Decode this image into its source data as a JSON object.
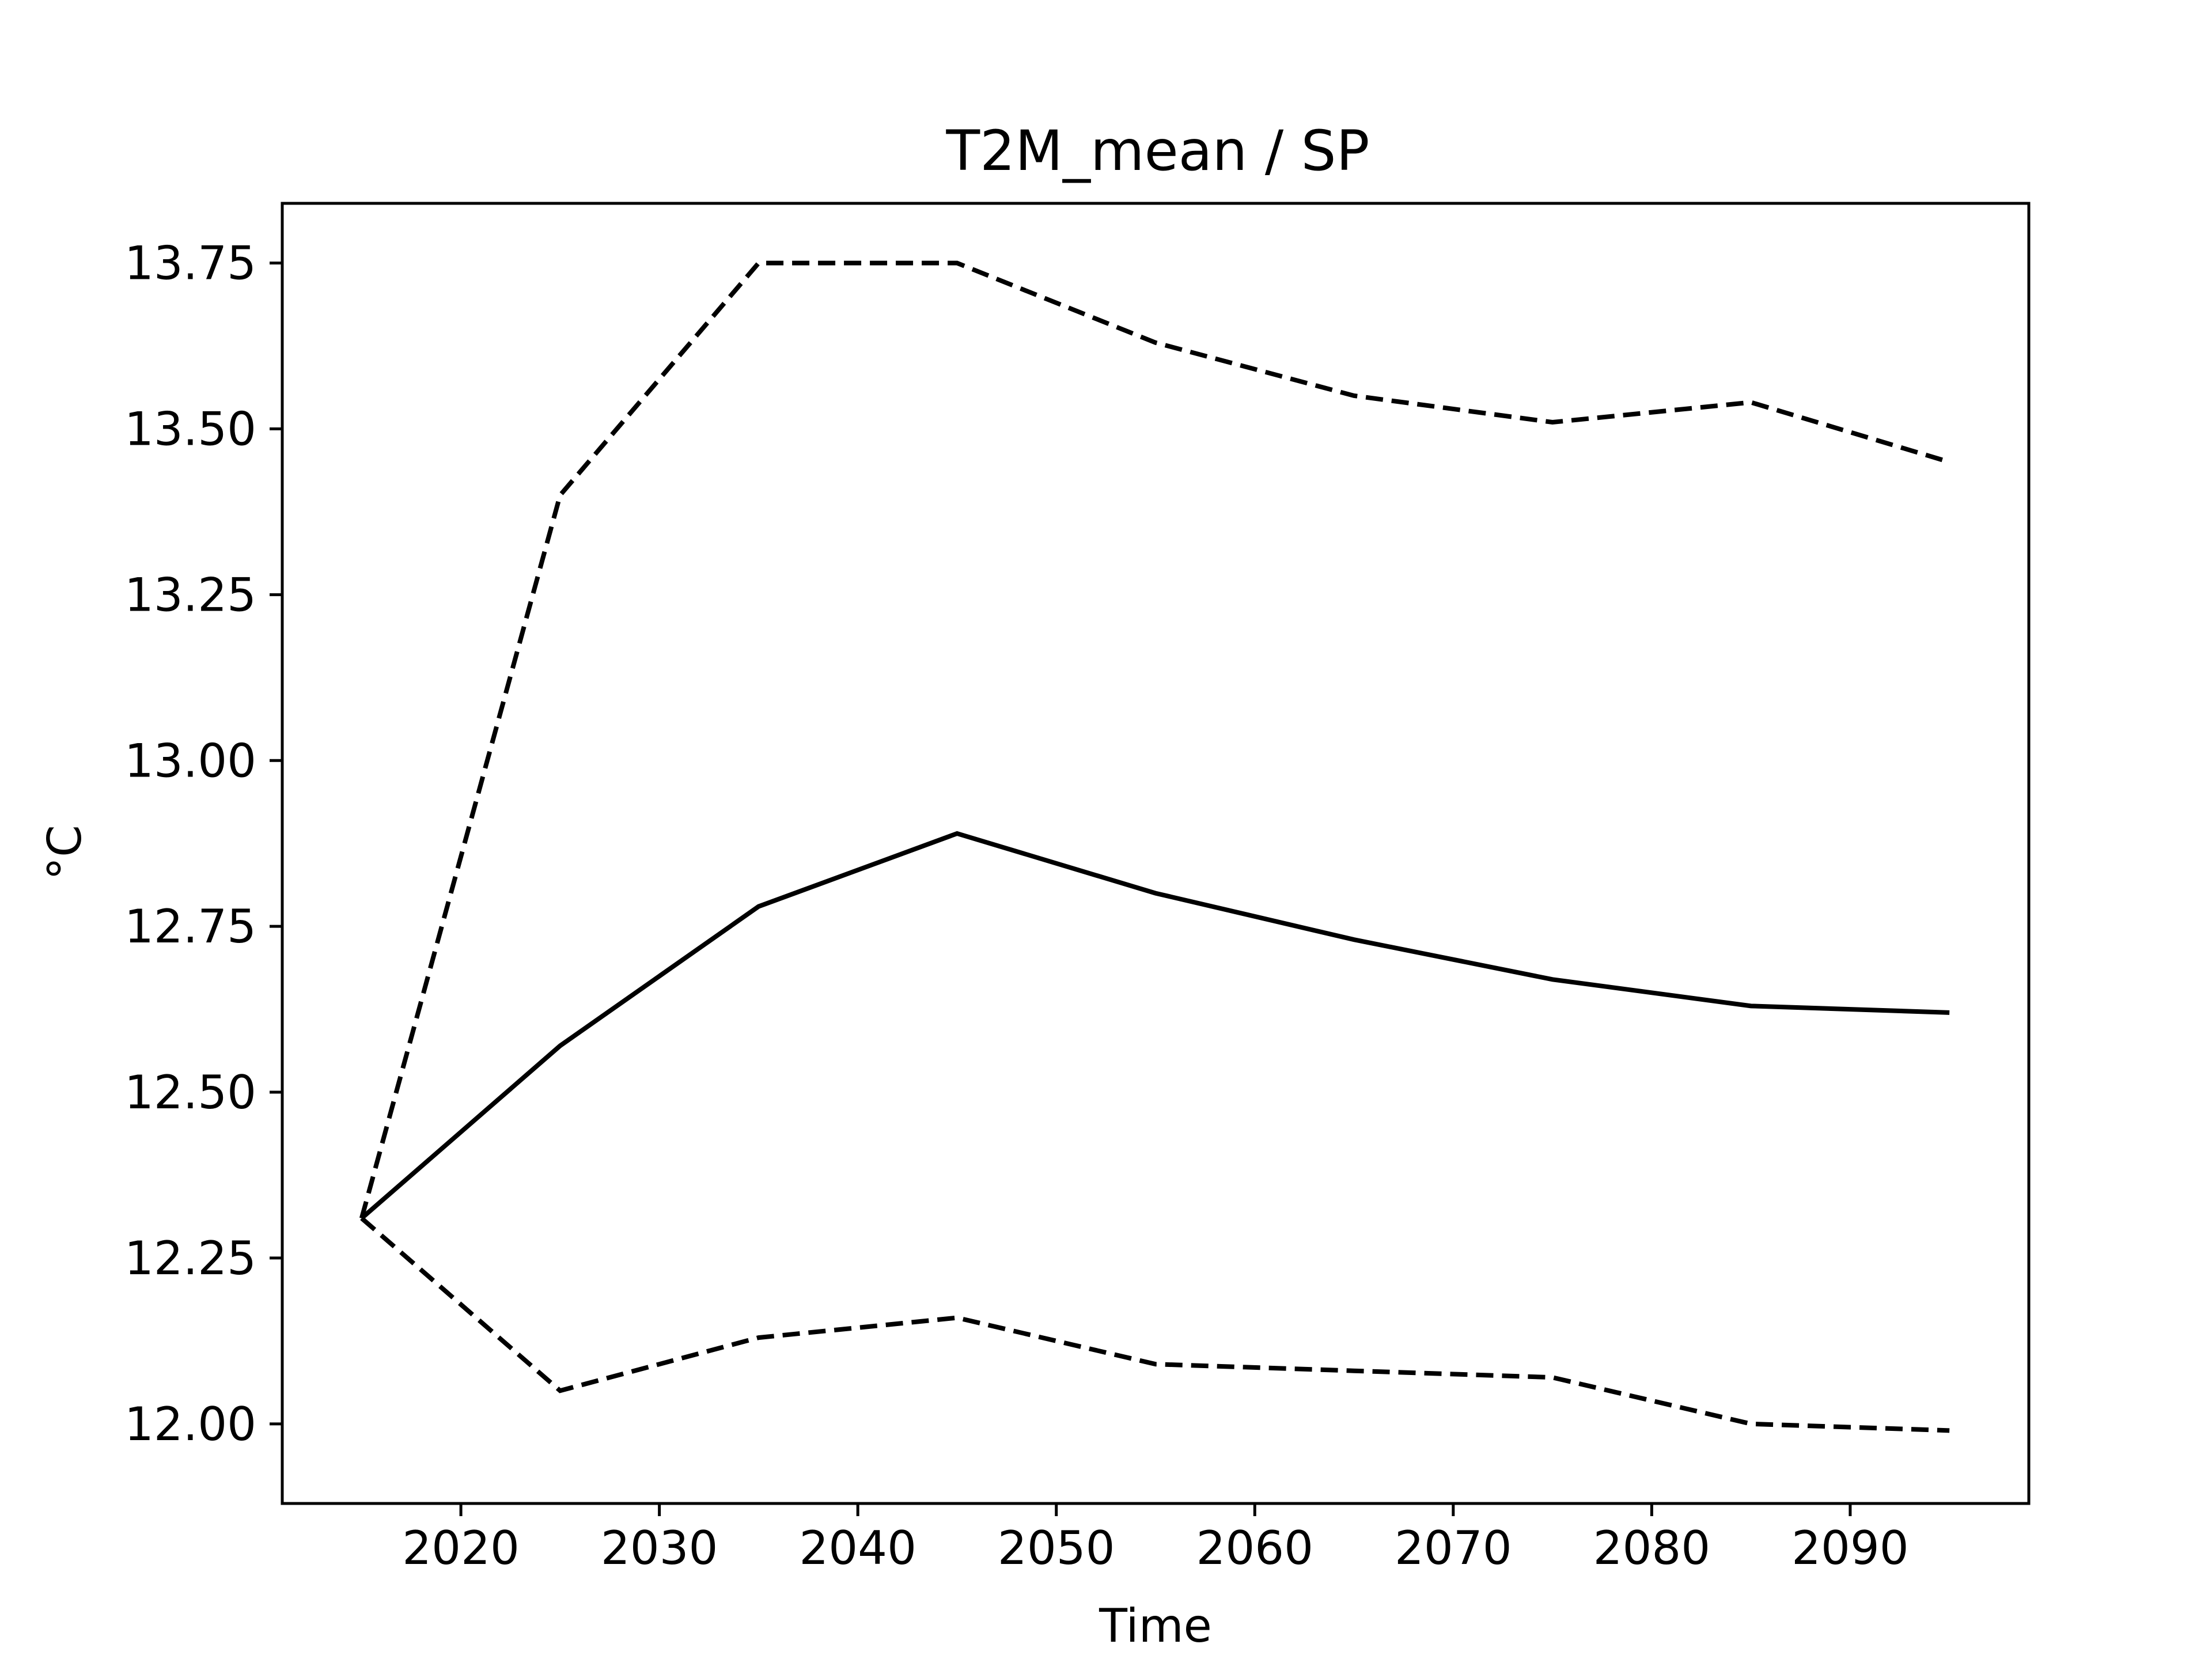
{
  "chart_data": {
    "type": "line",
    "title": "T2M_mean / SP",
    "xlabel": "Time",
    "ylabel": "°C",
    "xlim": [
      2011,
      2099
    ],
    "ylim": [
      11.88,
      13.84
    ],
    "xticks": [
      2020,
      2030,
      2040,
      2050,
      2060,
      2070,
      2080,
      2090
    ],
    "yticks": [
      12.0,
      12.25,
      12.5,
      12.75,
      13.0,
      13.25,
      13.5,
      13.75
    ],
    "grid": false,
    "legend": "none",
    "x": [
      2015,
      2025,
      2035,
      2045,
      2055,
      2065,
      2075,
      2085,
      2095
    ],
    "series": [
      {
        "style": "solid",
        "color": "#000000",
        "values": [
          12.31,
          12.57,
          12.78,
          12.89,
          12.8,
          12.73,
          12.67,
          12.63,
          12.62
        ]
      },
      {
        "style": "dashed",
        "color": "#000000",
        "values": [
          12.31,
          13.4,
          13.75,
          13.75,
          13.63,
          13.55,
          13.51,
          13.54,
          13.45
        ]
      },
      {
        "style": "dashed",
        "color": "#000000",
        "values": [
          12.31,
          12.05,
          12.13,
          12.16,
          12.09,
          12.08,
          12.07,
          12.0,
          11.99
        ]
      }
    ]
  }
}
